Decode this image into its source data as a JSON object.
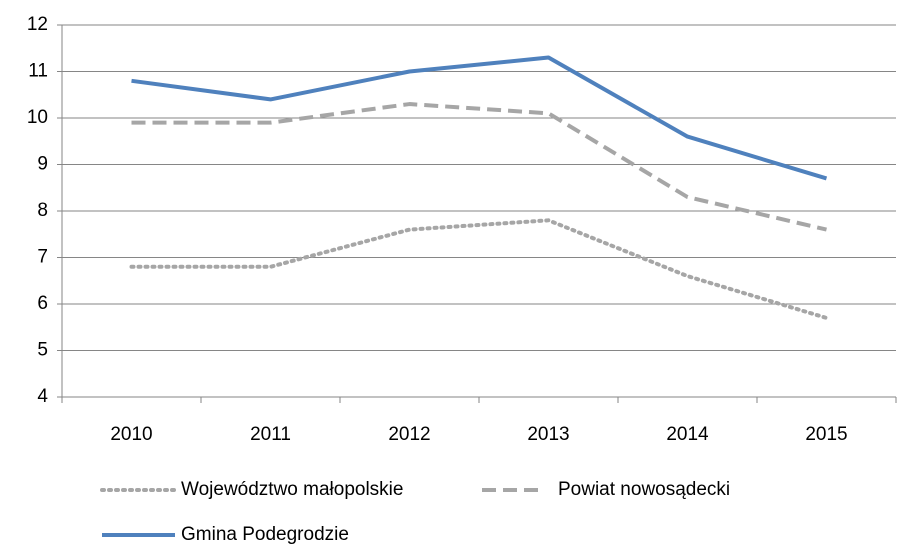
{
  "chart_data": {
    "type": "line",
    "categories": [
      "2010",
      "2011",
      "2012",
      "2013",
      "2014",
      "2015"
    ],
    "series": [
      {
        "name": "Województwo małopolskie",
        "color": "#a6a6a6",
        "line_style": "dotted",
        "values": [
          6.8,
          6.8,
          7.6,
          7.8,
          6.6,
          5.7
        ]
      },
      {
        "name": "Powiat nowosądecki",
        "color": "#a6a6a6",
        "line_style": "dashed",
        "values": [
          9.9,
          9.9,
          10.3,
          10.1,
          8.3,
          7.6
        ]
      },
      {
        "name": "Gmina Podegrodzie",
        "color": "#4f81bd",
        "line_style": "solid",
        "values": [
          10.8,
          10.4,
          11.0,
          11.3,
          9.6,
          8.7
        ]
      }
    ],
    "ylim": [
      4,
      12
    ],
    "yticks": [
      4,
      5,
      6,
      7,
      8,
      9,
      10,
      11,
      12
    ],
    "grid": true,
    "legend": "bottom"
  }
}
